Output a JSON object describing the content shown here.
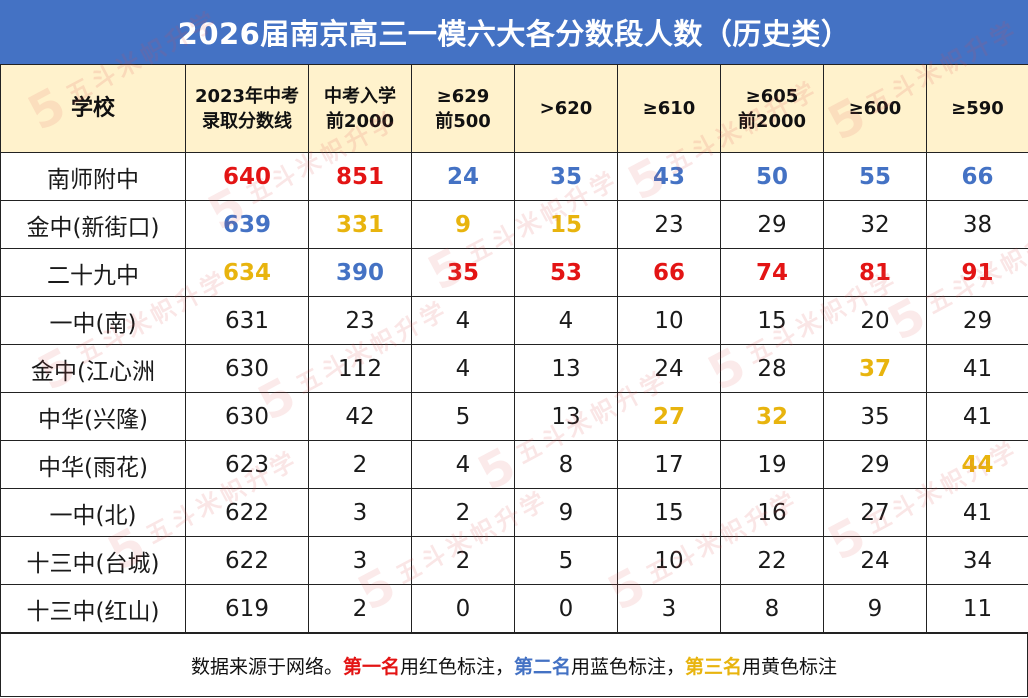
{
  "title": "2026届南京高三一模六大各分数段人数（历史类）",
  "table": {
    "headers": [
      {
        "line1": "学校",
        "line2": ""
      },
      {
        "line1": "2023年中考",
        "line2": "录取分数线"
      },
      {
        "line1": "中考入学",
        "line2": "前2000"
      },
      {
        "line1": "≥629",
        "line2": "前500"
      },
      {
        "line1": ">620",
        "line2": ""
      },
      {
        "line1": "≥610",
        "line2": ""
      },
      {
        "line1": "≥605",
        "line2": "前2000"
      },
      {
        "line1": "≥600",
        "line2": ""
      },
      {
        "line1": "≥590",
        "line2": ""
      }
    ],
    "rows": [
      {
        "school": "南师附中",
        "cells": [
          "640",
          "851",
          "24",
          "35",
          "43",
          "50",
          "55",
          "66"
        ],
        "marks": [
          "red",
          "red",
          "blue",
          "blue",
          "blue",
          "blue",
          "blue",
          "blue"
        ]
      },
      {
        "school": "金中(新街口)",
        "cells": [
          "639",
          "331",
          "9",
          "15",
          "23",
          "29",
          "32",
          "38"
        ],
        "marks": [
          "blue",
          "yellow",
          "yellow",
          "yellow",
          "",
          "",
          "",
          ""
        ]
      },
      {
        "school": "二十九中",
        "cells": [
          "634",
          "390",
          "35",
          "53",
          "66",
          "74",
          "81",
          "91"
        ],
        "marks": [
          "yellow",
          "blue",
          "red",
          "red",
          "red",
          "red",
          "red",
          "red"
        ]
      },
      {
        "school": "一中(南)",
        "cells": [
          "631",
          "23",
          "4",
          "4",
          "10",
          "15",
          "20",
          "29"
        ],
        "marks": [
          "",
          "",
          "",
          "",
          "",
          "",
          "",
          ""
        ]
      },
      {
        "school": "金中(江心洲",
        "cells": [
          "630",
          "112",
          "4",
          "13",
          "24",
          "28",
          "37",
          "41"
        ],
        "marks": [
          "",
          "",
          "",
          "",
          "",
          "",
          "yellow",
          ""
        ]
      },
      {
        "school": "中华(兴隆)",
        "cells": [
          "630",
          "42",
          "5",
          "13",
          "27",
          "32",
          "35",
          "41"
        ],
        "marks": [
          "",
          "",
          "",
          "",
          "yellow",
          "yellow",
          "",
          ""
        ]
      },
      {
        "school": "中华(雨花)",
        "cells": [
          "623",
          "2",
          "4",
          "8",
          "17",
          "19",
          "29",
          "44"
        ],
        "marks": [
          "",
          "",
          "",
          "",
          "",
          "",
          "",
          "yellow"
        ]
      },
      {
        "school": "一中(北)",
        "cells": [
          "622",
          "3",
          "2",
          "9",
          "15",
          "16",
          "27",
          "41"
        ],
        "marks": [
          "",
          "",
          "",
          "",
          "",
          "",
          "",
          ""
        ]
      },
      {
        "school": "十三中(台城)",
        "cells": [
          "622",
          "3",
          "2",
          "5",
          "10",
          "22",
          "24",
          "34"
        ],
        "marks": [
          "",
          "",
          "",
          "",
          "",
          "",
          "",
          ""
        ]
      },
      {
        "school": "十三中(红山)",
        "cells": [
          "619",
          "2",
          "0",
          "0",
          "3",
          "8",
          "9",
          "11"
        ],
        "marks": [
          "",
          "",
          "",
          "",
          "",
          "",
          "",
          ""
        ]
      }
    ]
  },
  "footer": {
    "prefix": "数据来源于网络。",
    "first_label": "第一名",
    "first_text": "用红色标注，",
    "second_label": "第二名",
    "second_text": "用蓝色标注，",
    "third_label": "第三名",
    "third_text": "用黄色标注"
  },
  "watermark": "五斗米帜升学",
  "colors": {
    "header_bg": "#4472C4",
    "subheader_bg": "#FFF2CC",
    "red": "#E31414",
    "blue": "#4472C4",
    "yellow": "#E8B40E"
  },
  "chart_data": {
    "type": "table",
    "title": "2026届南京高三一模六大各分数段人数（历史类）",
    "columns": [
      "学校",
      "2023年中考录取分数线",
      "中考入学前2000",
      "≥629前500",
      ">620",
      "≥610",
      "≥605前2000",
      "≥600",
      "≥590"
    ],
    "rows": [
      [
        "南师附中",
        640,
        851,
        24,
        35,
        43,
        50,
        55,
        66
      ],
      [
        "金中(新街口)",
        639,
        331,
        9,
        15,
        23,
        29,
        32,
        38
      ],
      [
        "二十九中",
        634,
        390,
        35,
        53,
        66,
        74,
        81,
        91
      ],
      [
        "一中(南)",
        631,
        23,
        4,
        4,
        10,
        15,
        20,
        29
      ],
      [
        "金中(江心洲",
        630,
        112,
        4,
        13,
        24,
        28,
        37,
        41
      ],
      [
        "中华(兴隆)",
        630,
        42,
        5,
        13,
        27,
        32,
        35,
        41
      ],
      [
        "中华(雨花)",
        623,
        2,
        4,
        8,
        17,
        19,
        29,
        44
      ],
      [
        "一中(北)",
        622,
        3,
        2,
        9,
        15,
        16,
        27,
        41
      ],
      [
        "十三中(台城)",
        622,
        3,
        2,
        5,
        10,
        22,
        24,
        34
      ],
      [
        "十三中(红山)",
        619,
        2,
        0,
        0,
        3,
        8,
        9,
        11
      ]
    ]
  }
}
